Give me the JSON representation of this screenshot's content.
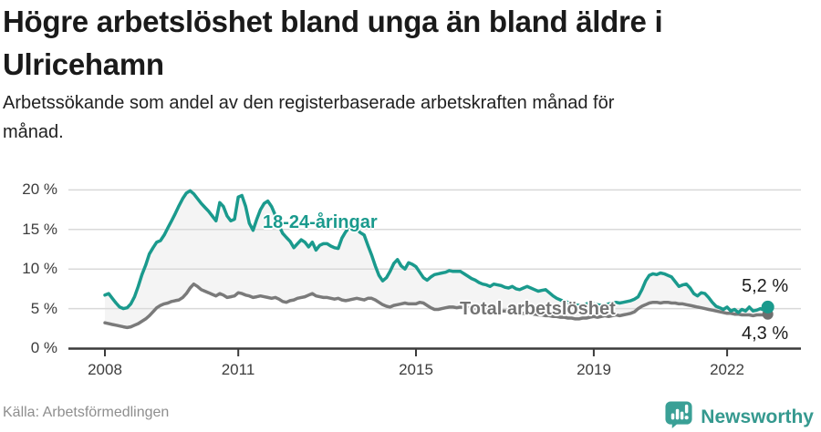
{
  "header": {
    "title": "Högre arbetslöshet bland unga än bland äldre i Ulricehamn",
    "subtitle": "Arbetssökande som andel av den registerbaserade arbetskraften månad för månad."
  },
  "footer": {
    "source": "Källa: Arbetsförmedlingen",
    "brand": "Newsworthy",
    "logo_icon": "bar-chart-speech-bubble-icon"
  },
  "colors": {
    "young": "#1a9a8d",
    "total": "#7a7a7a",
    "fill": "#f4f4f4",
    "grid": "#d9d9d9",
    "axis": "#3b3b3b",
    "end_dot_total": "#6f6f6f"
  },
  "chart_data": {
    "type": "line",
    "title": "Högre arbetslöshet bland unga än bland äldre i Ulricehamn",
    "unit": "%",
    "x_start": "2008-01",
    "x_end": "2022-12",
    "x_frequency": "monthly",
    "ylim": [
      0,
      21
    ],
    "grid": true,
    "legend_position": "inline-labels",
    "yticks": [
      {
        "label": "0 %",
        "value": 0
      },
      {
        "label": "5 %",
        "value": 5
      },
      {
        "label": "10 %",
        "value": 10
      },
      {
        "label": "15 %",
        "value": 15
      },
      {
        "label": "20 %",
        "value": 20
      }
    ],
    "xticks": [
      {
        "label": "2008",
        "year": 2008
      },
      {
        "label": "2011",
        "year": 2011
      },
      {
        "label": "2015",
        "year": 2015
      },
      {
        "label": "2019",
        "year": 2019
      },
      {
        "label": "2022",
        "year": 2022
      }
    ],
    "end_labels": {
      "young": "5,2 %",
      "total": "4,3 %"
    },
    "series": [
      {
        "name": "18-24-åringar",
        "color": "#1a9a8d",
        "values": [
          6.7,
          6.9,
          6.3,
          5.7,
          5.2,
          5.0,
          5.1,
          5.6,
          6.5,
          7.8,
          9.3,
          10.5,
          11.9,
          12.7,
          13.4,
          13.6,
          14.3,
          15.2,
          16.1,
          17.0,
          18.0,
          18.9,
          19.6,
          19.9,
          19.5,
          18.9,
          18.3,
          17.8,
          17.3,
          16.7,
          16.1,
          18.4,
          17.9,
          16.7,
          16.1,
          16.3,
          19.1,
          19.3,
          17.9,
          15.8,
          14.9,
          16.3,
          17.5,
          18.3,
          18.6,
          17.9,
          16.8,
          15.5,
          14.5,
          14.0,
          13.5,
          12.7,
          13.2,
          13.7,
          13.4,
          12.8,
          13.4,
          12.4,
          13.0,
          13.2,
          13.2,
          12.9,
          12.7,
          12.6,
          13.9,
          14.7,
          15.3,
          15.4,
          15.0,
          14.6,
          14.3,
          13.0,
          11.8,
          10.4,
          9.2,
          8.5,
          8.9,
          9.7,
          10.7,
          11.2,
          10.4,
          10.0,
          10.8,
          10.6,
          10.3,
          9.6,
          8.9,
          8.6,
          9.0,
          9.3,
          9.4,
          9.5,
          9.6,
          9.8,
          9.7,
          9.7,
          9.7,
          9.4,
          9.1,
          8.8,
          8.6,
          8.3,
          8.1,
          8.0,
          7.8,
          8.1,
          8.0,
          7.9,
          7.7,
          7.6,
          7.8,
          7.5,
          7.4,
          7.6,
          7.8,
          7.6,
          7.4,
          7.2,
          7.3,
          7.4,
          7.0,
          6.6,
          6.3,
          6.1,
          5.9,
          5.8,
          5.6,
          5.5,
          5.4,
          5.5,
          5.6,
          5.7,
          5.6,
          5.5,
          5.4,
          5.5,
          5.6,
          5.7,
          5.8,
          5.7,
          5.8,
          5.9,
          6.0,
          6.2,
          6.5,
          7.4,
          8.5,
          9.2,
          9.4,
          9.3,
          9.5,
          9.4,
          9.2,
          9.0,
          8.4,
          7.8,
          8.0,
          8.1,
          7.6,
          6.9,
          6.6,
          7.0,
          6.9,
          6.4,
          5.8,
          5.3,
          5.1,
          4.9,
          5.2,
          4.7,
          4.9,
          4.5,
          4.9,
          4.7,
          5.2,
          4.7,
          4.8,
          5.0,
          4.8,
          5.2
        ]
      },
      {
        "name": "Total arbetslöshet",
        "color": "#7a7a7a",
        "values": [
          3.2,
          3.1,
          3.0,
          2.9,
          2.8,
          2.7,
          2.6,
          2.7,
          2.9,
          3.1,
          3.4,
          3.7,
          4.1,
          4.6,
          5.1,
          5.4,
          5.6,
          5.7,
          5.9,
          6.0,
          6.1,
          6.4,
          6.9,
          7.6,
          8.1,
          7.8,
          7.4,
          7.2,
          7.0,
          6.8,
          6.6,
          6.9,
          6.7,
          6.4,
          6.5,
          6.6,
          7.0,
          6.9,
          6.7,
          6.6,
          6.4,
          6.5,
          6.6,
          6.5,
          6.4,
          6.3,
          6.4,
          6.2,
          5.9,
          5.8,
          6.0,
          6.1,
          6.3,
          6.4,
          6.5,
          6.7,
          6.9,
          6.6,
          6.5,
          6.4,
          6.4,
          6.3,
          6.2,
          6.3,
          6.1,
          6.0,
          6.1,
          6.2,
          6.3,
          6.2,
          6.1,
          6.3,
          6.3,
          6.1,
          5.8,
          5.5,
          5.3,
          5.2,
          5.4,
          5.5,
          5.6,
          5.7,
          5.6,
          5.6,
          5.6,
          5.8,
          5.7,
          5.4,
          5.1,
          4.9,
          4.9,
          5.0,
          5.1,
          5.2,
          5.2,
          5.1,
          5.2,
          5.1,
          5.1,
          5.0,
          5.0,
          4.9,
          4.9,
          4.8,
          4.8,
          4.9,
          4.8,
          4.7,
          4.7,
          4.6,
          4.6,
          4.5,
          4.5,
          4.4,
          4.4,
          4.3,
          4.3,
          4.2,
          4.2,
          4.1,
          4.1,
          4.0,
          4.0,
          3.9,
          3.9,
          3.8,
          3.8,
          3.7,
          3.7,
          3.8,
          3.8,
          3.9,
          4.0,
          3.9,
          4.0,
          4.1,
          4.0,
          4.1,
          4.2,
          4.1,
          4.2,
          4.3,
          4.4,
          4.6,
          5.0,
          5.3,
          5.5,
          5.7,
          5.8,
          5.8,
          5.7,
          5.8,
          5.8,
          5.7,
          5.7,
          5.6,
          5.6,
          5.5,
          5.4,
          5.3,
          5.2,
          5.1,
          5.0,
          4.9,
          4.8,
          4.7,
          4.6,
          4.5,
          4.4,
          4.4,
          4.3,
          4.3,
          4.2,
          4.2,
          4.2,
          4.1,
          4.2,
          4.2,
          4.2,
          4.3
        ]
      }
    ]
  }
}
